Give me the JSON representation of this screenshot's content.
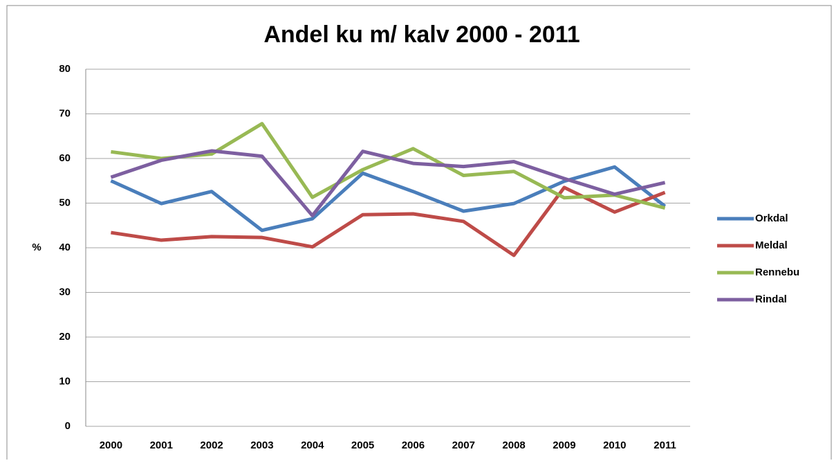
{
  "chart_data": {
    "type": "line",
    "title": "Andel ku m/ kalv 2000 - 2011",
    "y_label": "%",
    "categories": [
      "2000",
      "2001",
      "2002",
      "2003",
      "2004",
      "2005",
      "2006",
      "2007",
      "2008",
      "2009",
      "2010",
      "2011"
    ],
    "series": [
      {
        "name": "Orkdal",
        "color": "#4a7ebb",
        "values": [
          55.0,
          49.9,
          52.6,
          43.9,
          46.5,
          56.7,
          52.6,
          48.2,
          49.9,
          54.9,
          58.1,
          49.3
        ]
      },
      {
        "name": "Meldal",
        "color": "#be4b48",
        "values": [
          43.4,
          41.7,
          42.5,
          42.3,
          40.2,
          47.4,
          47.6,
          45.9,
          38.3,
          53.5,
          48.0,
          52.4
        ]
      },
      {
        "name": "Rennebu",
        "color": "#98b954",
        "values": [
          61.5,
          60.0,
          61.0,
          67.8,
          51.3,
          57.5,
          62.2,
          56.2,
          57.1,
          51.2,
          51.8,
          48.9
        ]
      },
      {
        "name": "Rindal",
        "color": "#7d5fa0",
        "values": [
          55.8,
          59.6,
          61.7,
          60.5,
          47.2,
          61.6,
          58.9,
          58.2,
          59.3,
          55.5,
          52.0,
          54.6
        ]
      }
    ],
    "ylim": [
      0,
      80
    ],
    "yticks": [
      0,
      10,
      20,
      30,
      40,
      50,
      60,
      70,
      80
    ],
    "grid": true,
    "legend": "right"
  }
}
